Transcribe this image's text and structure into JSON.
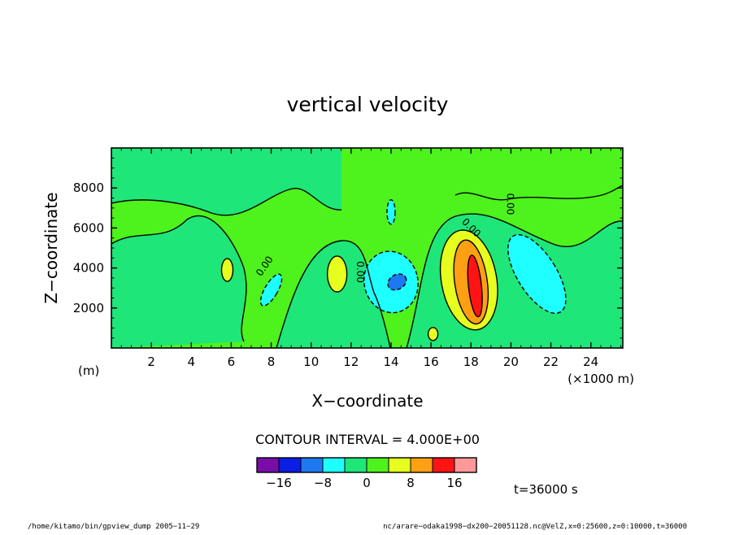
{
  "chart_data": {
    "type": "heatmap",
    "title": "vertical velocity",
    "xlabel": "X−coordinate",
    "ylabel": "Z−coordinate",
    "x_unit": "(×1000 m)",
    "y_unit": "(m)",
    "xlim": [
      0,
      25.6
    ],
    "ylim": [
      0,
      10000
    ],
    "x_ticks": [
      2,
      4,
      6,
      8,
      10,
      12,
      14,
      16,
      18,
      20,
      22,
      24
    ],
    "x_tick_labels": [
      "2",
      "4",
      "6",
      "8",
      "10",
      "12",
      "14",
      "16",
      "18",
      "20",
      "22",
      "24"
    ],
    "y_ticks": [
      2000,
      4000,
      6000,
      8000
    ],
    "y_tick_labels": [
      "2000",
      "4000",
      "6000",
      "8000"
    ],
    "contour_interval_text": "CONTOUR INTERVAL = 4.000E+00",
    "colorbar": {
      "colors": [
        "#7a0ca8",
        "#0a1ee6",
        "#1e78f0",
        "#1effff",
        "#1ee678",
        "#4ef21c",
        "#e6ff1e",
        "#ff9f14",
        "#ff1414",
        "#ff9999"
      ],
      "boundaries": [
        -20,
        -16,
        -12,
        -8,
        -4,
        0,
        4,
        8,
        12,
        16,
        20
      ],
      "tick_values": [
        -16,
        -8,
        0,
        8,
        16
      ],
      "tick_labels": [
        "−16",
        "−8",
        "0",
        "8",
        "16"
      ]
    },
    "background_fill_color": "#4ef21c",
    "features": [
      {
        "kind": "updraft",
        "x": 18.2,
        "z": 3100,
        "level": 16,
        "color": "#ff1414"
      },
      {
        "kind": "updraft",
        "x": 18.0,
        "z": 3300,
        "level": 12,
        "color": "#ff9f14"
      },
      {
        "kind": "updraft",
        "x": 17.9,
        "z": 3400,
        "level": 8,
        "color": "#e6ff1e"
      },
      {
        "kind": "updraft",
        "x": 11.3,
        "z": 3700,
        "level": 4,
        "color": "#e6ff1e"
      },
      {
        "kind": "updraft",
        "x": 5.8,
        "z": 3900,
        "level": 4,
        "color": "#e6ff1e"
      },
      {
        "kind": "updraft",
        "x": 16.1,
        "z": 700,
        "level": 4,
        "color": "#e6ff1e"
      },
      {
        "kind": "downdraft",
        "x": 14.3,
        "z": 3300,
        "level": -12,
        "color": "#1e78f0"
      },
      {
        "kind": "downdraft",
        "x": 14.0,
        "z": 3300,
        "level": -4,
        "color": "#1effff"
      },
      {
        "kind": "downdraft",
        "x": 21.3,
        "z": 3700,
        "level": -4,
        "color": "#1effff"
      },
      {
        "kind": "downdraft",
        "x": 8.0,
        "z": 2900,
        "level": -4,
        "color": "#1effff"
      },
      {
        "kind": "downdraft",
        "x": 14.0,
        "z": 6800,
        "level": -4,
        "color": "#1effff"
      }
    ],
    "contour_labels": [
      {
        "x": 7.8,
        "z": 4000,
        "text": "0.00",
        "angle": -55
      },
      {
        "x": 12.3,
        "z": 3800,
        "text": "0.00",
        "angle": 90
      },
      {
        "x": 17.9,
        "z": 5900,
        "text": "0.00",
        "angle": 45
      },
      {
        "x": 19.8,
        "z": 7200,
        "text": "0.00",
        "angle": 90
      }
    ]
  },
  "footer": {
    "time_label": "t=36000 s",
    "left_path": "/home/kitamo/bin/gpview_dump   2005−11−29",
    "right_path": "nc/arare−odaka1998−dx200−20051128.nc@VelZ,x=0:25600,z=0:10000,t=36000"
  }
}
